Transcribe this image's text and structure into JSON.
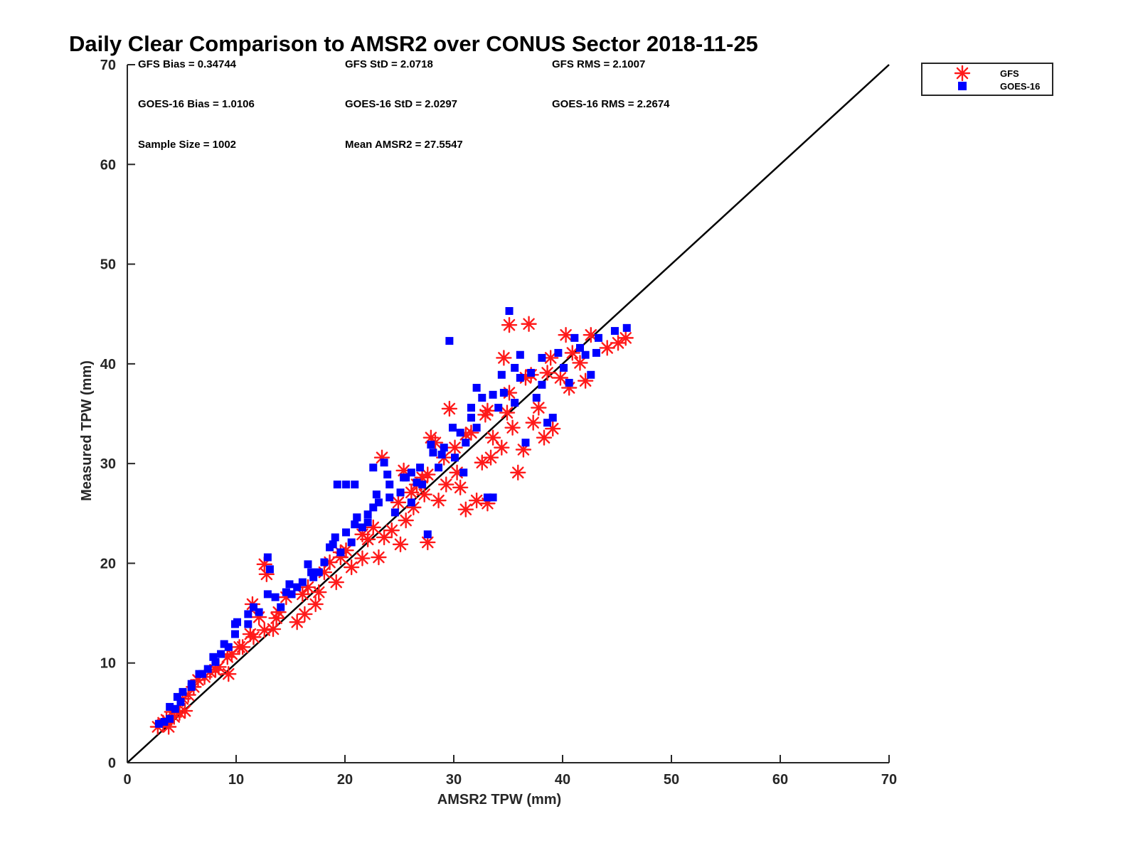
{
  "chart_data": {
    "type": "scatter",
    "title": "Daily Clear Comparison to AMSR2 over CONUS Sector 2018-11-25",
    "xlabel": "AMSR2 TPW (mm)",
    "ylabel": "Measured TPW (mm)",
    "xlim": [
      0,
      70
    ],
    "ylim": [
      0,
      70
    ],
    "xticks": [
      0,
      10,
      20,
      30,
      40,
      50,
      60,
      70
    ],
    "yticks": [
      0,
      10,
      20,
      30,
      40,
      50,
      60,
      70
    ],
    "grid": false,
    "legend_position": "outside-top-right",
    "reference_line": {
      "from": [
        0,
        0
      ],
      "to": [
        70,
        70
      ],
      "color": "#000000"
    },
    "annotations": [
      [
        "GFS Bias = 0.34744",
        "GFS StD = 2.0718",
        "GFS RMS = 2.1007"
      ],
      [
        "GOES-16 Bias = 1.0106",
        "GOES-16 StD = 2.0297",
        "GOES-16 RMS = 2.2674"
      ],
      [
        "Sample Size = 1002",
        "Mean AMSR2 = 27.5547"
      ]
    ],
    "series": [
      {
        "name": "GFS",
        "marker": "asterisk",
        "color": "#ff1a1a",
        "points": [
          [
            2.8,
            3.6
          ],
          [
            3.3,
            4.0
          ],
          [
            3.8,
            3.6
          ],
          [
            4.3,
            4.6
          ],
          [
            4.8,
            5.0
          ],
          [
            5.3,
            5.2
          ],
          [
            5.6,
            6.8
          ],
          [
            6.5,
            8.3
          ],
          [
            7.6,
            9.1
          ],
          [
            8.4,
            9.6
          ],
          [
            9.3,
            8.9
          ],
          [
            9.2,
            10.6
          ],
          [
            10.3,
            11.6
          ],
          [
            11.3,
            12.9
          ],
          [
            11.5,
            15.9
          ],
          [
            12.6,
            13.3
          ],
          [
            12.8,
            18.9
          ],
          [
            13.4,
            13.4
          ],
          [
            13.7,
            14.5
          ],
          [
            12.6,
            19.9
          ],
          [
            15.6,
            14.1
          ],
          [
            16.3,
            14.9
          ],
          [
            17.3,
            15.9
          ],
          [
            17.6,
            17.1
          ],
          [
            18.1,
            19.1
          ],
          [
            19.2,
            18.1
          ],
          [
            19.6,
            20.6
          ],
          [
            20.6,
            19.6
          ],
          [
            21.6,
            20.5
          ],
          [
            22.1,
            22.4
          ],
          [
            23.1,
            20.6
          ],
          [
            23.6,
            22.6
          ],
          [
            24.3,
            23.3
          ],
          [
            25.1,
            21.9
          ],
          [
            25.6,
            24.3
          ],
          [
            26.1,
            27.1
          ],
          [
            26.6,
            27.9
          ],
          [
            27.6,
            22.1
          ],
          [
            27.3,
            26.9
          ],
          [
            27.9,
            32.6
          ],
          [
            28.6,
            26.3
          ],
          [
            29.3,
            27.9
          ],
          [
            29.6,
            35.5
          ],
          [
            30.3,
            29.1
          ],
          [
            30.6,
            27.6
          ],
          [
            31.1,
            25.4
          ],
          [
            32.1,
            26.3
          ],
          [
            32.6,
            30.1
          ],
          [
            33.4,
            30.6
          ],
          [
            33.1,
            26.0
          ],
          [
            33.6,
            32.6
          ],
          [
            34.4,
            31.6
          ],
          [
            34.6,
            40.6
          ],
          [
            35.1,
            43.9
          ],
          [
            35.4,
            33.6
          ],
          [
            35.9,
            29.1
          ],
          [
            36.4,
            31.4
          ],
          [
            36.9,
            44.0
          ],
          [
            37.3,
            34.1
          ],
          [
            37.8,
            35.6
          ],
          [
            38.3,
            32.6
          ],
          [
            39.1,
            33.5
          ],
          [
            38.6,
            39.1
          ],
          [
            39.8,
            38.6
          ],
          [
            40.3,
            42.9
          ],
          [
            40.6,
            37.6
          ],
          [
            41.6,
            40.1
          ],
          [
            42.1,
            38.3
          ],
          [
            42.6,
            42.9
          ],
          [
            44.1,
            41.6
          ],
          [
            45.8,
            42.6
          ],
          [
            45.1,
            42.1
          ],
          [
            23.4,
            30.6
          ],
          [
            25.4,
            29.3
          ],
          [
            30.1,
            31.6
          ],
          [
            28.3,
            32.1
          ],
          [
            32.9,
            34.9
          ],
          [
            34.9,
            35.1
          ],
          [
            36.6,
            38.6
          ],
          [
            31.6,
            33.1
          ],
          [
            26.3,
            25.6
          ],
          [
            27.1,
            28.6
          ],
          [
            21.6,
            22.9
          ],
          [
            20.1,
            21.3
          ],
          [
            18.6,
            20.1
          ],
          [
            16.6,
            17.6
          ],
          [
            14.6,
            16.6
          ],
          [
            12.1,
            14.6
          ],
          [
            10.6,
            11.6
          ],
          [
            9.6,
            10.9
          ],
          [
            7.1,
            8.6
          ],
          [
            6.1,
            7.6
          ],
          [
            4.1,
            5.1
          ],
          [
            3.6,
            4.3
          ],
          [
            5.1,
            6.4
          ],
          [
            8.1,
            9.3
          ],
          [
            11.6,
            12.6
          ],
          [
            13.9,
            15.1
          ],
          [
            16.1,
            16.9
          ],
          [
            19.6,
            21.1
          ],
          [
            22.6,
            23.6
          ],
          [
            24.9,
            26.1
          ],
          [
            27.6,
            28.9
          ],
          [
            29.1,
            30.6
          ],
          [
            31.1,
            32.9
          ],
          [
            33.1,
            35.3
          ],
          [
            35.1,
            37.1
          ],
          [
            37.1,
            38.9
          ],
          [
            38.9,
            40.6
          ],
          [
            40.9,
            41.1
          ]
        ]
      },
      {
        "name": "GOES-16",
        "marker": "square",
        "color": "#0000ff",
        "points": [
          [
            2.9,
            3.9
          ],
          [
            3.4,
            4.1
          ],
          [
            3.9,
            4.4
          ],
          [
            4.4,
            5.4
          ],
          [
            4.9,
            6.1
          ],
          [
            5.1,
            7.1
          ],
          [
            5.9,
            7.6
          ],
          [
            6.6,
            8.9
          ],
          [
            7.4,
            9.4
          ],
          [
            8.1,
            10.1
          ],
          [
            8.6,
            10.9
          ],
          [
            9.3,
            11.6
          ],
          [
            9.9,
            12.9
          ],
          [
            10.1,
            14.1
          ],
          [
            11.1,
            13.9
          ],
          [
            11.6,
            15.6
          ],
          [
            12.1,
            15.1
          ],
          [
            12.9,
            20.6
          ],
          [
            13.1,
            19.4
          ],
          [
            13.6,
            16.6
          ],
          [
            14.1,
            15.6
          ],
          [
            14.6,
            17.1
          ],
          [
            15.1,
            16.9
          ],
          [
            15.6,
            17.6
          ],
          [
            16.1,
            18.1
          ],
          [
            16.6,
            19.9
          ],
          [
            17.1,
            18.6
          ],
          [
            17.6,
            19.1
          ],
          [
            18.1,
            20.1
          ],
          [
            18.6,
            21.6
          ],
          [
            19.1,
            22.6
          ],
          [
            19.6,
            21.1
          ],
          [
            20.1,
            23.1
          ],
          [
            20.6,
            22.1
          ],
          [
            21.1,
            24.6
          ],
          [
            21.6,
            23.6
          ],
          [
            22.1,
            24.1
          ],
          [
            22.6,
            25.6
          ],
          [
            23.1,
            26.1
          ],
          [
            23.6,
            30.1
          ],
          [
            24.1,
            26.6
          ],
          [
            24.6,
            25.1
          ],
          [
            25.1,
            27.1
          ],
          [
            25.6,
            28.6
          ],
          [
            26.1,
            26.1
          ],
          [
            26.6,
            28.1
          ],
          [
            27.1,
            27.9
          ],
          [
            27.6,
            22.9
          ],
          [
            28.1,
            31.1
          ],
          [
            28.6,
            29.6
          ],
          [
            29.1,
            31.6
          ],
          [
            29.6,
            42.3
          ],
          [
            30.1,
            30.6
          ],
          [
            30.6,
            33.1
          ],
          [
            31.1,
            32.1
          ],
          [
            31.6,
            34.6
          ],
          [
            32.1,
            33.6
          ],
          [
            32.6,
            36.6
          ],
          [
            33.1,
            26.6
          ],
          [
            33.6,
            26.6
          ],
          [
            34.1,
            35.6
          ],
          [
            34.6,
            37.1
          ],
          [
            35.1,
            45.3
          ],
          [
            35.6,
            36.1
          ],
          [
            36.1,
            38.6
          ],
          [
            36.6,
            32.1
          ],
          [
            37.1,
            39.1
          ],
          [
            37.6,
            36.6
          ],
          [
            38.1,
            40.6
          ],
          [
            38.6,
            34.1
          ],
          [
            39.1,
            34.6
          ],
          [
            39.6,
            41.1
          ],
          [
            40.1,
            39.6
          ],
          [
            40.6,
            38.1
          ],
          [
            41.1,
            42.6
          ],
          [
            41.6,
            41.6
          ],
          [
            42.1,
            40.9
          ],
          [
            42.6,
            38.9
          ],
          [
            43.1,
            41.1
          ],
          [
            43.3,
            42.6
          ],
          [
            44.8,
            43.3
          ],
          [
            45.9,
            43.6
          ],
          [
            19.3,
            27.9
          ],
          [
            20.1,
            27.9
          ],
          [
            20.9,
            27.9
          ],
          [
            22.1,
            24.9
          ],
          [
            21.1,
            24.6
          ],
          [
            22.6,
            29.6
          ],
          [
            23.9,
            28.9
          ],
          [
            25.4,
            28.6
          ],
          [
            26.9,
            29.6
          ],
          [
            28.9,
            30.9
          ],
          [
            30.9,
            29.1
          ],
          [
            32.1,
            37.6
          ],
          [
            34.4,
            38.9
          ],
          [
            36.1,
            40.9
          ],
          [
            38.1,
            37.9
          ],
          [
            35.6,
            39.6
          ],
          [
            33.6,
            36.9
          ],
          [
            31.6,
            35.6
          ],
          [
            29.9,
            33.6
          ],
          [
            27.9,
            31.9
          ],
          [
            26.1,
            29.1
          ],
          [
            24.1,
            27.9
          ],
          [
            22.9,
            26.9
          ],
          [
            20.9,
            23.9
          ],
          [
            18.9,
            21.9
          ],
          [
            16.9,
            19.1
          ],
          [
            14.9,
            17.9
          ],
          [
            12.9,
            16.9
          ],
          [
            11.1,
            14.9
          ],
          [
            9.9,
            13.9
          ],
          [
            8.9,
            11.9
          ],
          [
            7.9,
            10.6
          ],
          [
            6.9,
            8.9
          ],
          [
            5.9,
            7.9
          ],
          [
            4.6,
            6.6
          ],
          [
            3.9,
            5.6
          ]
        ]
      }
    ]
  }
}
